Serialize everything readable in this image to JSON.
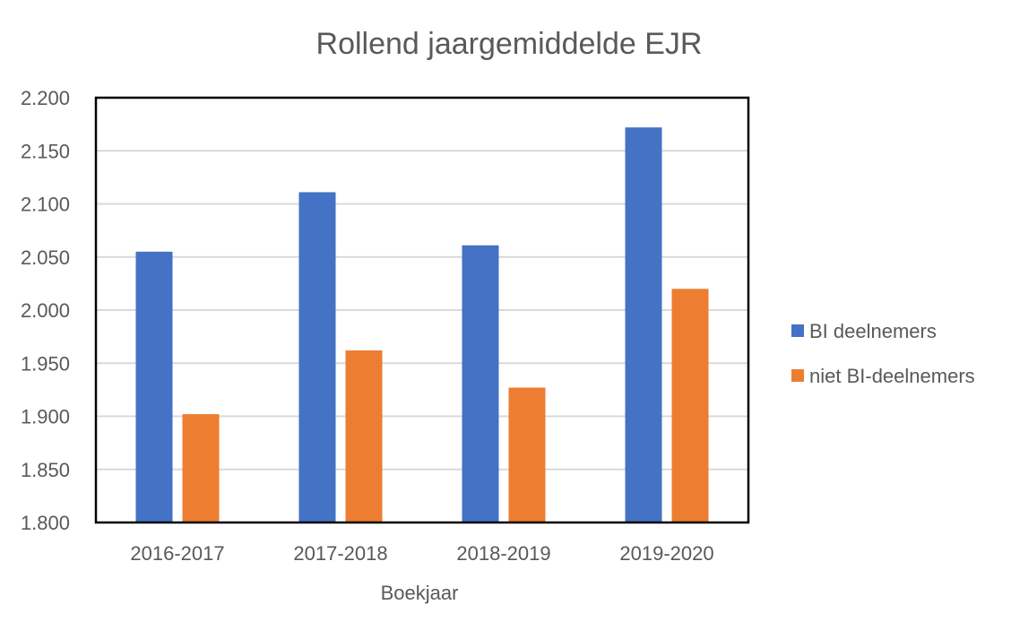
{
  "chart_data": {
    "type": "bar",
    "title": "Rollend jaargemiddelde EJR",
    "xlabel": "Boekjaar",
    "ylabel": "",
    "categories": [
      "2016-2017",
      "2017-2018",
      "2018-2019",
      "2019-2020"
    ],
    "series": [
      {
        "name": "BI deelnemers",
        "color": "#4472c4",
        "values": [
          2055,
          2111,
          2061,
          2172
        ]
      },
      {
        "name": "niet BI-deelnemers",
        "color": "#ed7d31",
        "values": [
          1902,
          1962,
          1927,
          2020
        ]
      }
    ],
    "ylim": [
      1800,
      2200
    ],
    "yticks": [
      1800,
      1850,
      1900,
      1950,
      2000,
      2050,
      2100,
      2150,
      2200
    ],
    "ytick_labels": [
      "1.800",
      "1.850",
      "1.900",
      "1.950",
      "2.000",
      "2.050",
      "2.100",
      "2.150",
      "2.200"
    ],
    "grid": true,
    "legend_position": "right"
  }
}
